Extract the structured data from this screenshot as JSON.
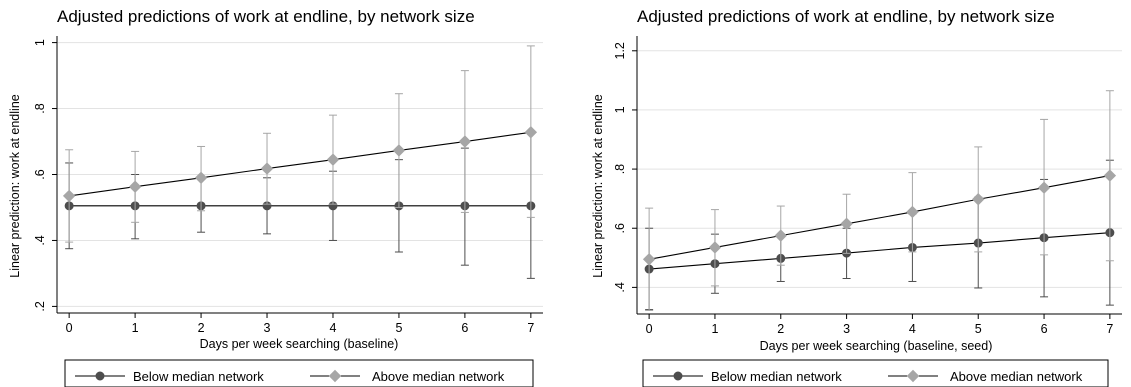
{
  "colors": {
    "below": "#4d4d4d",
    "above": "#a6a6a6",
    "line": "#000000",
    "grid": "#e3e3e3",
    "axis": "#000000"
  },
  "chart_data": [
    {
      "type": "line",
      "title": "Adjusted predictions of work at endline, by network size",
      "xlabel": "Days per week searching (baseline)",
      "ylabel": "Linear prediction: work at endline",
      "x": [
        0,
        1,
        2,
        3,
        4,
        5,
        6,
        7
      ],
      "xticks": [
        "0",
        "1",
        "2",
        "3",
        "4",
        "5",
        "6",
        "7"
      ],
      "yticks": [
        0.2,
        0.4,
        0.6,
        0.8,
        1.0
      ],
      "ytick_labels": [
        ".2",
        ".4",
        ".6",
        ".8",
        "1"
      ],
      "ylim": [
        0.18,
        1.02
      ],
      "grid": true,
      "legend_position": "bottom",
      "series": [
        {
          "name": "Below median network",
          "marker": "circle",
          "values": [
            0.505,
            0.505,
            0.505,
            0.505,
            0.505,
            0.505,
            0.505,
            0.505
          ],
          "ci_low": [
            0.375,
            0.405,
            0.425,
            0.42,
            0.4,
            0.365,
            0.325,
            0.285
          ],
          "ci_high": [
            0.635,
            0.6,
            0.585,
            0.59,
            0.61,
            0.645,
            0.68,
            0.725
          ]
        },
        {
          "name": "Above median network",
          "marker": "diamond",
          "values": [
            0.535,
            0.563,
            0.59,
            0.618,
            0.645,
            0.673,
            0.7,
            0.728
          ],
          "ci_low": [
            0.395,
            0.455,
            0.49,
            0.51,
            0.51,
            0.5,
            0.485,
            0.47
          ],
          "ci_high": [
            0.675,
            0.67,
            0.685,
            0.725,
            0.78,
            0.845,
            0.915,
            0.99
          ]
        }
      ]
    },
    {
      "type": "line",
      "title": "Adjusted predictions of work at endline, by network size",
      "xlabel": "Days per week searching (baseline, seed)",
      "ylabel": "Linear prediction: work at endline",
      "x": [
        0,
        1,
        2,
        3,
        4,
        5,
        6,
        7
      ],
      "xticks": [
        "0",
        "1",
        "2",
        "3",
        "4",
        "5",
        "6",
        "7"
      ],
      "yticks": [
        0.4,
        0.6,
        0.8,
        1.0,
        1.2
      ],
      "ytick_labels": [
        ".4",
        ".6",
        ".8",
        "1",
        "1.2"
      ],
      "ylim": [
        0.31,
        1.25
      ],
      "grid": true,
      "legend_position": "bottom",
      "series": [
        {
          "name": "Below median network",
          "marker": "circle",
          "values": [
            0.462,
            0.48,
            0.498,
            0.516,
            0.535,
            0.55,
            0.568,
            0.585
          ],
          "ci_low": [
            0.325,
            0.38,
            0.42,
            0.43,
            0.42,
            0.398,
            0.368,
            0.34
          ],
          "ci_high": [
            0.6,
            0.58,
            0.578,
            0.6,
            0.648,
            0.705,
            0.765,
            0.83
          ]
        },
        {
          "name": "Above median network",
          "marker": "diamond",
          "values": [
            0.495,
            0.535,
            0.575,
            0.615,
            0.655,
            0.698,
            0.737,
            0.778
          ],
          "ci_low": [
            0.322,
            0.405,
            0.475,
            0.515,
            0.52,
            0.52,
            0.51,
            0.49
          ],
          "ci_high": [
            0.668,
            0.663,
            0.675,
            0.715,
            0.788,
            0.875,
            0.968,
            1.065
          ]
        }
      ]
    }
  ]
}
